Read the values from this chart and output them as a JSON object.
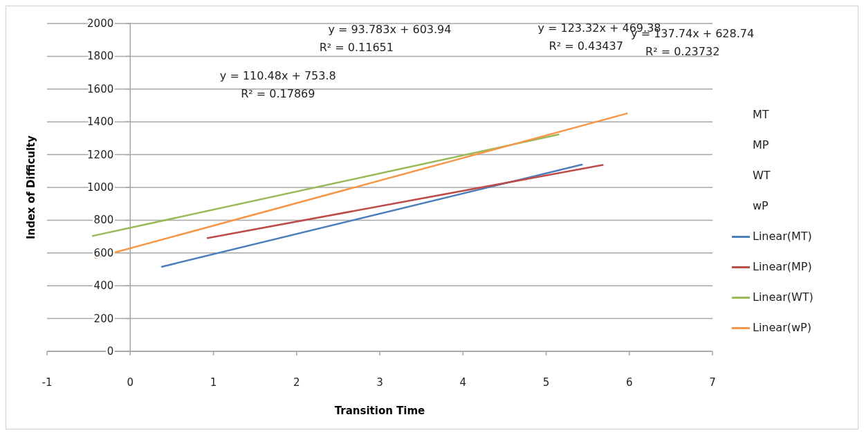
{
  "chart_data": {
    "type": "line",
    "xlabel": "Transition Time",
    "ylabel": "Index of Difficulty",
    "xlim": [
      -1,
      7
    ],
    "xticks": [
      -1,
      0,
      1,
      2,
      3,
      4,
      5,
      6,
      7
    ],
    "ylim": [
      0,
      2000
    ],
    "yticks": [
      0,
      200,
      400,
      600,
      800,
      1000,
      1200,
      1400,
      1600,
      1800,
      2000
    ],
    "grid": "y",
    "legend": "right",
    "marker": "none",
    "line_style": "solid",
    "series": [
      {
        "name": "MT"
      },
      {
        "name": "MP"
      },
      {
        "name": "WT"
      },
      {
        "name": "wP"
      },
      {
        "name": "Linear(MT)",
        "color": "#4a7ebb",
        "x": [
          0.38,
          5.43
        ],
        "values": [
          516,
          1139
        ]
      },
      {
        "name": "Linear(MP)",
        "color": "#be4b48",
        "x": [
          0.93,
          5.68
        ],
        "values": [
          691,
          1137
        ]
      },
      {
        "name": "Linear(WT)",
        "color": "#98b954",
        "x": [
          -0.45,
          5.15
        ],
        "values": [
          704,
          1323
        ]
      },
      {
        "name": "Linear(wP)",
        "color": "#f79646",
        "x": [
          -0.42,
          5.97
        ],
        "values": [
          571,
          1451
        ]
      }
    ],
    "annotations": [
      "y = 110.48x + 753.8",
      "R² = 0.17869",
      "y = 93.783x + 603.94",
      "R² = 0.11651",
      "y = 123.32x + 469.38",
      "R² = 0.43437",
      "y = 137.74x + 628.74",
      "R² = 0.23732"
    ]
  }
}
